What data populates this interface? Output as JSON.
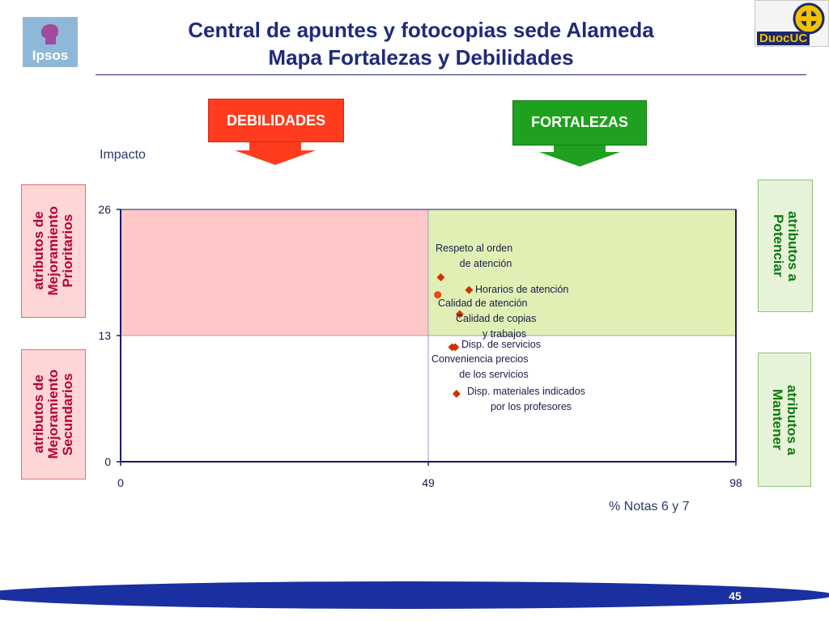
{
  "header": {
    "title_line1": "Central de apuntes y fotocopias sede Alameda",
    "title_line2": "Mapa Fortalezas y Debilidades"
  },
  "logos": {
    "left_text": "Ipsos",
    "right_text": "DuocUC"
  },
  "callouts": {
    "debilidades": "DEBILIDADES",
    "fortalezas": "FORTALEZAS"
  },
  "side_labels": {
    "top_left": "atributos de\nMejoramiento\nPrioritarios",
    "bottom_left": "atributos de\nMejoramiento\nSecundarios",
    "top_right": "atributos a\nPotenciar",
    "bottom_right": "atributos a\nMantener"
  },
  "page_number": "45",
  "colors": {
    "title": "#1f2a7a",
    "debilidades_fill": "#ff3c1e",
    "fortalezas_fill": "#1fa11f",
    "quadrant_top_left": "#ffc8c8",
    "quadrant_top_right": "#e0f0b4",
    "point_diamond": "#cc3300",
    "point_circle": "#ee4411",
    "footer_band": "#1a2fa0"
  },
  "chart_data": {
    "type": "scatter",
    "ylabel": "Impacto",
    "xlabel": "% Notas 6 y 7",
    "xlim": [
      0,
      98
    ],
    "ylim": [
      0,
      26
    ],
    "x_ticks": [
      "0",
      "49",
      "98"
    ],
    "y_ticks": [
      "0",
      "13",
      "26"
    ],
    "x_divider": 49,
    "y_divider": 13,
    "grid": false,
    "points": [
      {
        "label": "Respeto al orden de atención",
        "x": 51,
        "y": 19.0,
        "marker": "diamond"
      },
      {
        "label": "Horarios de atención",
        "x": 55.5,
        "y": 17.7,
        "marker": "diamond"
      },
      {
        "label": "Calidad de atención",
        "x": 50.5,
        "y": 17.2,
        "marker": "circle"
      },
      {
        "label": "Calidad de copias y trabajos",
        "x": 54,
        "y": 15.2,
        "marker": "diamond"
      },
      {
        "label": "Disp. de servicios",
        "x": 53.3,
        "y": 11.8,
        "marker": "diamond"
      },
      {
        "label": "Conveniencia precios de los servicios",
        "x": 52.8,
        "y": 11.8,
        "marker": "diamond"
      },
      {
        "label": "Disp. materiales indicados por los profesores",
        "x": 53.5,
        "y": 7.0,
        "marker": "diamond"
      }
    ]
  }
}
